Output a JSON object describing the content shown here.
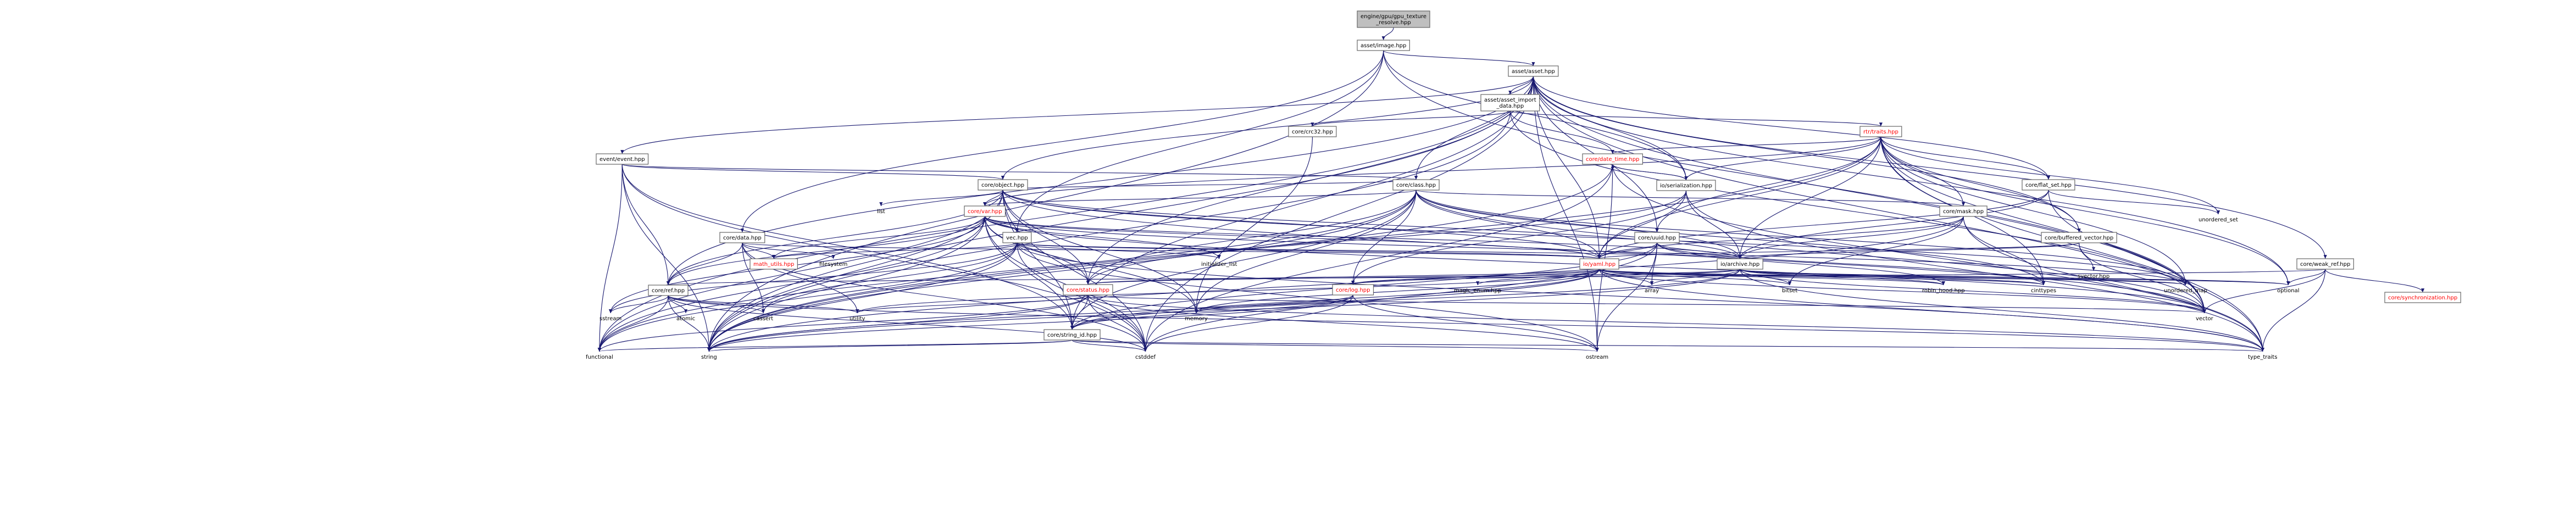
{
  "colors": {
    "edge": "#191970",
    "node_border": "#666666",
    "root_fill": "#bfbfbf",
    "incomplete_node_text": "#ff0000"
  },
  "nodes": [
    {
      "id": "gpu_texture",
      "lines": [
        "engine/gpu/gpu_texture",
        "_resolve.hpp"
      ],
      "style": "root"
    },
    {
      "id": "asset_image",
      "lines": [
        "asset/image.hpp"
      ],
      "style": "box"
    },
    {
      "id": "asset_asset",
      "lines": [
        "asset/asset.hpp"
      ],
      "style": "box"
    },
    {
      "id": "asset_import",
      "lines": [
        "asset/asset_import",
        "_data.hpp"
      ],
      "style": "box"
    },
    {
      "id": "crc32",
      "lines": [
        "core/crc32.hpp"
      ],
      "style": "box"
    },
    {
      "id": "traits",
      "lines": [
        "rtr/traits.hpp"
      ],
      "style": "red"
    },
    {
      "id": "date_time",
      "lines": [
        "core/date_time.hpp"
      ],
      "style": "red"
    },
    {
      "id": "serialization",
      "lines": [
        "io/serialization.hpp"
      ],
      "style": "box"
    },
    {
      "id": "event",
      "lines": [
        "event/event.hpp"
      ],
      "style": "box"
    },
    {
      "id": "object",
      "lines": [
        "core/object.hpp"
      ],
      "style": "box"
    },
    {
      "id": "class",
      "lines": [
        "core/class.hpp"
      ],
      "style": "box"
    },
    {
      "id": "flat_set",
      "lines": [
        "core/flat_set.hpp"
      ],
      "style": "box"
    },
    {
      "id": "unordered_set",
      "lines": [
        "unordered_set"
      ],
      "style": "text"
    },
    {
      "id": "list",
      "lines": [
        "list"
      ],
      "style": "text"
    },
    {
      "id": "var",
      "lines": [
        "core/var.hpp"
      ],
      "style": "red"
    },
    {
      "id": "mask",
      "lines": [
        "core/mask.hpp"
      ],
      "style": "box"
    },
    {
      "id": "data",
      "lines": [
        "core/data.hpp"
      ],
      "style": "box"
    },
    {
      "id": "vec",
      "lines": [
        "vec.hpp"
      ],
      "style": "box"
    },
    {
      "id": "uuid",
      "lines": [
        "core/uuid.hpp"
      ],
      "style": "box"
    },
    {
      "id": "buffered_vector",
      "lines": [
        "core/buffered_vector.hpp"
      ],
      "style": "box"
    },
    {
      "id": "svector",
      "lines": [
        "svector.hpp"
      ],
      "style": "text"
    },
    {
      "id": "filesystem",
      "lines": [
        "filesystem"
      ],
      "style": "text"
    },
    {
      "id": "math_utils",
      "lines": [
        "math_utils.hpp"
      ],
      "style": "red"
    },
    {
      "id": "initializer_list",
      "lines": [
        "initializer_list"
      ],
      "style": "text"
    },
    {
      "id": "io_yaml",
      "lines": [
        "io/yaml.hpp"
      ],
      "style": "red"
    },
    {
      "id": "io_archive",
      "lines": [
        "io/archive.hpp"
      ],
      "style": "box"
    },
    {
      "id": "weak_ref",
      "lines": [
        "core/weak_ref.hpp"
      ],
      "style": "box"
    },
    {
      "id": "synchronization",
      "lines": [
        "core/synchronization.hpp"
      ],
      "style": "red"
    },
    {
      "id": "ref",
      "lines": [
        "core/ref.hpp"
      ],
      "style": "box"
    },
    {
      "id": "status",
      "lines": [
        "core/status.hpp"
      ],
      "style": "red"
    },
    {
      "id": "log",
      "lines": [
        "core/log.hpp"
      ],
      "style": "red"
    },
    {
      "id": "magic_enum",
      "lines": [
        "magic_enum.hpp"
      ],
      "style": "text"
    },
    {
      "id": "array",
      "lines": [
        "array"
      ],
      "style": "text"
    },
    {
      "id": "bitset",
      "lines": [
        "bitset"
      ],
      "style": "text"
    },
    {
      "id": "robin_hood",
      "lines": [
        "robin_hood.hpp"
      ],
      "style": "text"
    },
    {
      "id": "cinttypes",
      "lines": [
        "cinttypes"
      ],
      "style": "text"
    },
    {
      "id": "unordered_map",
      "lines": [
        "unordered_map"
      ],
      "style": "text"
    },
    {
      "id": "optional",
      "lines": [
        "optional"
      ],
      "style": "text"
    },
    {
      "id": "sstream",
      "lines": [
        "sstream"
      ],
      "style": "text"
    },
    {
      "id": "atomic",
      "lines": [
        "atomic"
      ],
      "style": "text"
    },
    {
      "id": "cassert",
      "lines": [
        "cassert"
      ],
      "style": "text"
    },
    {
      "id": "utility",
      "lines": [
        "utility"
      ],
      "style": "text"
    },
    {
      "id": "memory",
      "lines": [
        "memory"
      ],
      "style": "text"
    },
    {
      "id": "string_id",
      "lines": [
        "core/string_id.hpp"
      ],
      "style": "box"
    },
    {
      "id": "vector",
      "lines": [
        "vector"
      ],
      "style": "text"
    },
    {
      "id": "functional",
      "lines": [
        "functional"
      ],
      "style": "text"
    },
    {
      "id": "string",
      "lines": [
        "string"
      ],
      "style": "text"
    },
    {
      "id": "cstddef",
      "lines": [
        "cstddef"
      ],
      "style": "text"
    },
    {
      "id": "ostream",
      "lines": [
        "ostream"
      ],
      "style": "text"
    },
    {
      "id": "type_traits",
      "lines": [
        "type_traits"
      ],
      "style": "text"
    }
  ],
  "edges": [
    [
      "gpu_texture",
      "asset_image"
    ],
    [
      "asset_image",
      "asset_asset"
    ],
    [
      "asset_image",
      "data"
    ],
    [
      "asset_image",
      "string"
    ],
    [
      "asset_image",
      "serialization"
    ],
    [
      "asset_image",
      "vec"
    ],
    [
      "asset_image",
      "vector"
    ],
    [
      "asset_asset",
      "asset_import"
    ],
    [
      "asset_asset",
      "event"
    ],
    [
      "asset_asset",
      "object"
    ],
    [
      "asset_asset",
      "class"
    ],
    [
      "asset_asset",
      "serialization"
    ],
    [
      "asset_asset",
      "string_id"
    ],
    [
      "asset_asset",
      "flat_set"
    ],
    [
      "asset_asset",
      "uuid"
    ],
    [
      "asset_asset",
      "weak_ref"
    ],
    [
      "asset_asset",
      "buffered_vector"
    ],
    [
      "asset_asset",
      "string"
    ],
    [
      "asset_asset",
      "functional"
    ],
    [
      "asset_asset",
      "optional"
    ],
    [
      "asset_asset",
      "vector"
    ],
    [
      "asset_asset",
      "ostream"
    ],
    [
      "asset_asset",
      "type_traits"
    ],
    [
      "asset_asset",
      "cstddef"
    ],
    [
      "asset_asset",
      "ref"
    ],
    [
      "asset_asset",
      "io_yaml"
    ],
    [
      "asset_asset",
      "status"
    ],
    [
      "asset_import",
      "crc32"
    ],
    [
      "asset_import",
      "date_time"
    ],
    [
      "asset_import",
      "traits"
    ],
    [
      "asset_import",
      "string"
    ],
    [
      "asset_import",
      "vector"
    ],
    [
      "crc32",
      "memory"
    ],
    [
      "traits",
      "date_time"
    ],
    [
      "traits",
      "serialization"
    ],
    [
      "traits",
      "flat_set"
    ],
    [
      "traits",
      "buffered_vector"
    ],
    [
      "traits",
      "uuid"
    ],
    [
      "traits",
      "unordered_set"
    ],
    [
      "traits",
      "unordered_map"
    ],
    [
      "traits",
      "vector"
    ],
    [
      "traits",
      "io_yaml"
    ],
    [
      "traits",
      "io_archive"
    ],
    [
      "traits",
      "string"
    ],
    [
      "traits",
      "type_traits"
    ],
    [
      "traits",
      "var"
    ],
    [
      "traits",
      "mask"
    ],
    [
      "traits",
      "optional"
    ],
    [
      "traits",
      "cinttypes"
    ],
    [
      "date_time",
      "serialization"
    ],
    [
      "date_time",
      "string"
    ],
    [
      "date_time",
      "cstddef"
    ],
    [
      "date_time",
      "ostream"
    ],
    [
      "date_time",
      "type_traits"
    ],
    [
      "serialization",
      "io_yaml"
    ],
    [
      "serialization",
      "io_archive"
    ],
    [
      "serialization",
      "log"
    ],
    [
      "serialization",
      "status"
    ],
    [
      "serialization",
      "type_traits"
    ],
    [
      "serialization",
      "date_time"
    ],
    [
      "event",
      "object"
    ],
    [
      "event",
      "class"
    ],
    [
      "event",
      "string_id"
    ],
    [
      "event",
      "ref"
    ],
    [
      "event",
      "string"
    ],
    [
      "event",
      "functional"
    ],
    [
      "event",
      "cstddef"
    ],
    [
      "object",
      "class"
    ],
    [
      "object",
      "list"
    ],
    [
      "object",
      "var"
    ],
    [
      "object",
      "ref"
    ],
    [
      "object",
      "status"
    ],
    [
      "object",
      "string_id"
    ],
    [
      "object",
      "io_yaml"
    ],
    [
      "object",
      "io_archive"
    ],
    [
      "object",
      "vector"
    ],
    [
      "object",
      "unordered_map"
    ],
    [
      "object",
      "string"
    ],
    [
      "object",
      "functional"
    ],
    [
      "object",
      "memory"
    ],
    [
      "object",
      "cstddef"
    ],
    [
      "class",
      "var"
    ],
    [
      "class",
      "mask"
    ],
    [
      "class",
      "status"
    ],
    [
      "class",
      "log"
    ],
    [
      "class",
      "string_id"
    ],
    [
      "class",
      "io_yaml"
    ],
    [
      "class",
      "io_archive"
    ],
    [
      "class",
      "unordered_map"
    ],
    [
      "class",
      "vector"
    ],
    [
      "class",
      "functional"
    ],
    [
      "class",
      "memory"
    ],
    [
      "class",
      "string"
    ],
    [
      "class",
      "cinttypes"
    ],
    [
      "flat_set",
      "unordered_set"
    ],
    [
      "flat_set",
      "io_yaml"
    ],
    [
      "flat_set",
      "io_archive"
    ],
    [
      "flat_set",
      "vector"
    ],
    [
      "var",
      "vec"
    ],
    [
      "var",
      "math_utils"
    ],
    [
      "var",
      "ref"
    ],
    [
      "var",
      "string_id"
    ],
    [
      "var",
      "status"
    ],
    [
      "var",
      "io_yaml"
    ],
    [
      "var",
      "io_archive"
    ],
    [
      "var",
      "initializer_list"
    ],
    [
      "var",
      "string"
    ],
    [
      "var",
      "functional"
    ],
    [
      "var",
      "vector"
    ],
    [
      "var",
      "unordered_map"
    ],
    [
      "var",
      "memory"
    ],
    [
      "var",
      "sstream"
    ],
    [
      "var",
      "cstddef"
    ],
    [
      "mask",
      "io_yaml"
    ],
    [
      "mask",
      "io_archive"
    ],
    [
      "mask",
      "bitset"
    ],
    [
      "mask",
      "cinttypes"
    ],
    [
      "mask",
      "type_traits"
    ],
    [
      "mask",
      "string"
    ],
    [
      "data",
      "math_utils"
    ],
    [
      "data",
      "ref"
    ],
    [
      "data",
      "filesystem"
    ],
    [
      "data",
      "io_yaml"
    ],
    [
      "data",
      "utility"
    ],
    [
      "data",
      "cassert"
    ],
    [
      "data",
      "cstddef"
    ],
    [
      "vec",
      "math_utils"
    ],
    [
      "vec",
      "io_yaml"
    ],
    [
      "vec",
      "io_archive"
    ],
    [
      "vec",
      "string"
    ],
    [
      "vec",
      "functional"
    ],
    [
      "vec",
      "cstddef"
    ],
    [
      "vec",
      "ostream"
    ],
    [
      "vec",
      "type_traits"
    ],
    [
      "vec",
      "sstream"
    ],
    [
      "vec",
      "cassert"
    ],
    [
      "vec",
      "initializer_list"
    ],
    [
      "uuid",
      "io_yaml"
    ],
    [
      "uuid",
      "io_archive"
    ],
    [
      "uuid",
      "robin_hood"
    ],
    [
      "uuid",
      "string_id"
    ],
    [
      "uuid",
      "array"
    ],
    [
      "uuid",
      "cinttypes"
    ],
    [
      "uuid",
      "ostream"
    ],
    [
      "uuid",
      "cstddef"
    ],
    [
      "buffered_vector",
      "svector"
    ],
    [
      "buffered_vector",
      "io_yaml"
    ],
    [
      "buffered_vector",
      "io_archive"
    ],
    [
      "buffered_vector",
      "vector"
    ],
    [
      "io_yaml",
      "status"
    ],
    [
      "io_yaml",
      "log"
    ],
    [
      "io_yaml",
      "magic_enum"
    ],
    [
      "io_yaml",
      "array"
    ],
    [
      "io_yaml",
      "bitset"
    ],
    [
      "io_yaml",
      "robin_hood"
    ],
    [
      "io_yaml",
      "cinttypes"
    ],
    [
      "io_yaml",
      "unordered_map"
    ],
    [
      "io_yaml",
      "optional"
    ],
    [
      "io_yaml",
      "vector"
    ],
    [
      "io_yaml",
      "string"
    ],
    [
      "io_yaml",
      "type_traits"
    ],
    [
      "io_yaml",
      "utility"
    ],
    [
      "io_yaml",
      "memory"
    ],
    [
      "io_yaml",
      "string_id"
    ],
    [
      "io_archive",
      "status"
    ],
    [
      "io_archive",
      "log"
    ],
    [
      "io_archive",
      "array"
    ],
    [
      "io_archive",
      "bitset"
    ],
    [
      "io_archive",
      "robin_hood"
    ],
    [
      "io_archive",
      "cinttypes"
    ],
    [
      "io_archive",
      "unordered_map"
    ],
    [
      "io_archive",
      "optional"
    ],
    [
      "io_archive",
      "vector"
    ],
    [
      "io_archive",
      "string"
    ],
    [
      "io_archive",
      "type_traits"
    ],
    [
      "io_archive",
      "string_id"
    ],
    [
      "weak_ref",
      "synchronization"
    ],
    [
      "weak_ref",
      "ref"
    ],
    [
      "weak_ref",
      "optional"
    ],
    [
      "weak_ref",
      "type_traits"
    ],
    [
      "weak_ref",
      "vector"
    ],
    [
      "ref",
      "atomic"
    ],
    [
      "ref",
      "cassert"
    ],
    [
      "ref",
      "utility"
    ],
    [
      "ref",
      "functional"
    ],
    [
      "ref",
      "string"
    ],
    [
      "ref",
      "cstddef"
    ],
    [
      "ref",
      "sstream"
    ],
    [
      "ref",
      "type_traits"
    ],
    [
      "status",
      "string_id"
    ],
    [
      "status",
      "string"
    ],
    [
      "status",
      "ostream"
    ],
    [
      "status",
      "cstddef"
    ],
    [
      "status",
      "functional"
    ],
    [
      "status",
      "utility"
    ],
    [
      "status",
      "vector"
    ],
    [
      "status",
      "type_traits"
    ],
    [
      "log",
      "string"
    ],
    [
      "log",
      "ostream"
    ],
    [
      "log",
      "memory"
    ],
    [
      "log",
      "cstddef"
    ],
    [
      "log",
      "string_id"
    ],
    [
      "string_id",
      "string"
    ],
    [
      "string_id",
      "cstddef"
    ],
    [
      "string_id",
      "ostream"
    ],
    [
      "string_id",
      "functional"
    ],
    [
      "string_id",
      "type_traits"
    ]
  ]
}
